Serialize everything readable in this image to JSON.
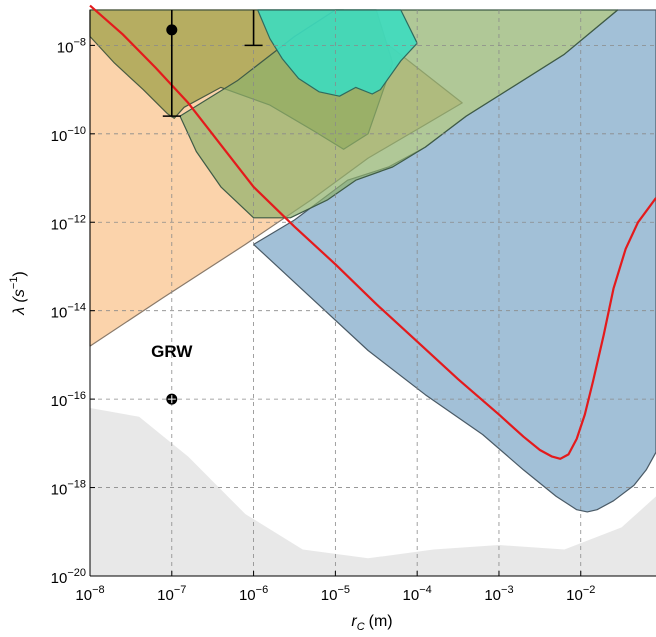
{
  "chart_data": {
    "type": "area",
    "xlabel": "r",
    "xlabel_sub": "C",
    "xlabel_unit": "(m)",
    "ylabel": "λ (s",
    "ylabel_sup": "−1",
    "ylabel_close": ")",
    "log_scale_x": true,
    "log_scale_y": true,
    "xlim_exp": [
      -8,
      -1.08
    ],
    "ylim_exp": [
      -20,
      -7.2
    ],
    "x_ticks": [
      {
        "base": "10",
        "exp": "−8",
        "e": -8
      },
      {
        "base": "10",
        "exp": "−7",
        "e": -7
      },
      {
        "base": "10",
        "exp": "−6",
        "e": -6
      },
      {
        "base": "10",
        "exp": "−5",
        "e": -5
      },
      {
        "base": "10",
        "exp": "−4",
        "e": -4
      },
      {
        "base": "10",
        "exp": "−3",
        "e": -3
      },
      {
        "base": "10",
        "exp": "−2",
        "e": -2
      }
    ],
    "y_ticks": [
      {
        "base": "10",
        "exp": "−20",
        "e": -20
      },
      {
        "base": "10",
        "exp": "−18",
        "e": -18
      },
      {
        "base": "10",
        "exp": "−16",
        "e": -16
      },
      {
        "base": "10",
        "exp": "−14",
        "e": -14
      },
      {
        "base": "10",
        "exp": "−12",
        "e": -12
      },
      {
        "base": "10",
        "exp": "−10",
        "e": -10
      },
      {
        "base": "10",
        "exp": "−8",
        "e": -8
      }
    ],
    "grid": true,
    "colors": {
      "orange": "#fbd1a6",
      "olive": "#a9a653",
      "green": "#8fb06b",
      "cyan": "#3ddbbf",
      "blue": "#7ea7c8",
      "red": "#e41a1c",
      "grey": "#d6d6d6"
    },
    "regions": [
      {
        "id": "orange",
        "exp_points": [
          [
            -8,
            -14.8
          ],
          [
            -7.1,
            -13.7
          ],
          [
            -6.1,
            -12.5
          ],
          [
            -5.3,
            -11.5
          ],
          [
            -4.6,
            -10.55
          ],
          [
            -4,
            -9.9
          ],
          [
            -3.45,
            -9.3
          ],
          [
            -4.9,
            -7.2
          ],
          [
            -8,
            -7.2
          ]
        ]
      },
      {
        "id": "olive",
        "exp_points": [
          [
            -8,
            -7.2
          ],
          [
            -7.08,
            -7.2
          ],
          [
            -6.15,
            -7.2
          ],
          [
            -4.5,
            -7.2
          ],
          [
            -4.3,
            -8.4
          ],
          [
            -4.6,
            -10.0
          ],
          [
            -4.9,
            -10.35
          ],
          [
            -5.25,
            -9.95
          ],
          [
            -5.8,
            -9.35
          ],
          [
            -6.4,
            -8.95
          ],
          [
            -6.85,
            -9.4
          ],
          [
            -6.97,
            -9.65
          ],
          [
            -7.05,
            -9.55
          ],
          [
            -7.35,
            -9.0
          ],
          [
            -7.7,
            -8.4
          ],
          [
            -8,
            -7.8
          ]
        ]
      },
      {
        "id": "green",
        "exp_points": [
          [
            -6.9,
            -9.6
          ],
          [
            -6.2,
            -8.8
          ],
          [
            -5.5,
            -7.8
          ],
          [
            -5.0,
            -7.2
          ],
          [
            -1.55,
            -7.2
          ],
          [
            -2.2,
            -8.2
          ],
          [
            -2.8,
            -8.9
          ],
          [
            -3.4,
            -9.6
          ],
          [
            -3.9,
            -10.3
          ],
          [
            -4.3,
            -10.75
          ],
          [
            -4.75,
            -11.05
          ],
          [
            -5.1,
            -11.5
          ],
          [
            -5.55,
            -11.9
          ],
          [
            -6.0,
            -11.9
          ],
          [
            -6.4,
            -11.2
          ],
          [
            -6.7,
            -10.4
          ]
        ]
      },
      {
        "id": "cyan",
        "exp_points": [
          [
            -5.95,
            -7.2
          ],
          [
            -4.2,
            -7.2
          ],
          [
            -4.0,
            -7.95
          ],
          [
            -4.2,
            -8.35
          ],
          [
            -4.45,
            -9.0
          ],
          [
            -4.55,
            -9.1
          ],
          [
            -4.75,
            -8.95
          ],
          [
            -4.95,
            -9.15
          ],
          [
            -5.2,
            -9.05
          ],
          [
            -5.45,
            -8.75
          ],
          [
            -5.65,
            -8.3
          ],
          [
            -5.8,
            -7.85
          ]
        ]
      },
      {
        "id": "blue",
        "exp_points": [
          [
            -5.5,
            -11.95
          ],
          [
            -4.85,
            -11.05
          ],
          [
            -4.35,
            -10.75
          ],
          [
            -3.9,
            -10.3
          ],
          [
            -3.4,
            -9.6
          ],
          [
            -2.8,
            -8.9
          ],
          [
            -2.2,
            -8.2
          ],
          [
            -1.55,
            -7.2
          ],
          [
            -1.08,
            -7.2
          ],
          [
            -1.08,
            -17.2
          ],
          [
            -1.2,
            -17.6
          ],
          [
            -1.35,
            -17.95
          ],
          [
            -1.6,
            -18.3
          ],
          [
            -1.8,
            -18.5
          ],
          [
            -1.92,
            -18.55
          ],
          [
            -2.05,
            -18.5
          ],
          [
            -2.3,
            -18.2
          ],
          [
            -2.7,
            -17.6
          ],
          [
            -3.2,
            -16.8
          ],
          [
            -3.9,
            -15.9
          ],
          [
            -4.6,
            -14.9
          ],
          [
            -5.3,
            -13.7
          ],
          [
            -6.0,
            -12.5
          ]
        ]
      },
      {
        "id": "grey",
        "exp_points": [
          [
            -8,
            -16.2
          ],
          [
            -7.4,
            -16.4
          ],
          [
            -6.8,
            -17.3
          ],
          [
            -6.1,
            -18.6
          ],
          [
            -5.4,
            -19.4
          ],
          [
            -4.6,
            -19.6
          ],
          [
            -3.8,
            -19.4
          ],
          [
            -3.0,
            -19.3
          ],
          [
            -2.2,
            -19.4
          ],
          [
            -1.5,
            -18.9
          ],
          [
            -1.08,
            -18.2
          ],
          [
            -1.08,
            -20
          ],
          [
            -8,
            -20
          ]
        ]
      }
    ],
    "red_curve": [
      [
        -8,
        -7.1
      ],
      [
        -7.6,
        -7.75
      ],
      [
        -7.2,
        -8.5
      ],
      [
        -6.8,
        -9.3
      ],
      [
        -6.4,
        -10.25
      ],
      [
        -6.0,
        -11.2
      ],
      [
        -5.5,
        -12.1
      ],
      [
        -5.0,
        -12.95
      ],
      [
        -4.5,
        -13.85
      ],
      [
        -4.0,
        -14.7
      ],
      [
        -3.5,
        -15.55
      ],
      [
        -3.0,
        -16.35
      ],
      [
        -2.7,
        -16.85
      ],
      [
        -2.5,
        -17.15
      ],
      [
        -2.35,
        -17.3
      ],
      [
        -2.25,
        -17.35
      ],
      [
        -2.15,
        -17.25
      ],
      [
        -2.05,
        -16.9
      ],
      [
        -1.95,
        -16.35
      ],
      [
        -1.85,
        -15.6
      ],
      [
        -1.72,
        -14.55
      ],
      [
        -1.6,
        -13.5
      ],
      [
        -1.45,
        -12.6
      ],
      [
        -1.3,
        -12.0
      ],
      [
        -1.08,
        -11.45
      ]
    ],
    "points": [
      {
        "id": "grw-point",
        "x_exp": -7,
        "y_exp": -16
      },
      {
        "id": "error-point",
        "x_exp": -7,
        "y_exp": -7.65,
        "err_low": -9.6,
        "err_high": -7.2
      }
    ],
    "error_bar_2": {
      "x_exp": -6,
      "y_low": -8.0,
      "y_high": -7.2
    },
    "annotations": [
      {
        "id": "grw-label",
        "text": "GRW",
        "x_exp": -7,
        "y_exp": -15.05
      }
    ]
  }
}
